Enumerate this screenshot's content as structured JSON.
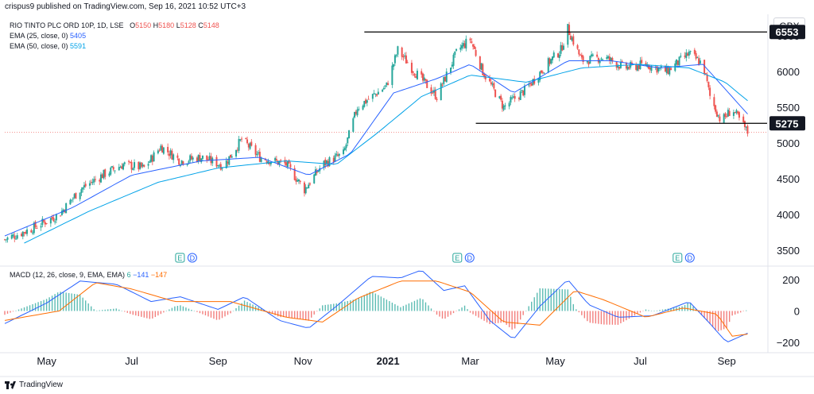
{
  "header": {
    "published_by": "crispus9 published on TradingView.com, Sep 16, 2021 10:52 UTC+3"
  },
  "legend": {
    "symbol": "RIO TINTO PLC ORD 10P, 1D, LSE",
    "open_label": "O",
    "open": "5150",
    "high_label": "H",
    "high": "5180",
    "low_label": "L",
    "low": "5128",
    "close_label": "C",
    "close": "5148",
    "ema25_label": "EMA (25, close, 0)",
    "ema25_value": "5405",
    "ema50_label": "EMA (50, close, 0)",
    "ema50_value": "5591"
  },
  "macd_legend": {
    "label": "MACD (12, 26, close, 9, EMA, EMA)",
    "hist": "6",
    "macd": "−141",
    "signal": "−147"
  },
  "currency": "GBX",
  "footer": {
    "brand": "TradingView"
  },
  "colors": {
    "up": "#26a69a",
    "down": "#ef5350",
    "ema25": "#2962ff",
    "ema50": "#00a2e8",
    "macd_line": "#2962ff",
    "signal_line": "#ff6d00",
    "hline": "#000000",
    "grid": "#f0f3fa"
  },
  "chart_data": {
    "type": "candlestick",
    "ylim": [
      3300,
      6800
    ],
    "y_ticks": [
      3500,
      4000,
      4500,
      5000,
      5500,
      6000,
      6500
    ],
    "x_ticks": [
      {
        "label": "May",
        "bold": false
      },
      {
        "label": "Jul",
        "bold": false
      },
      {
        "label": "Sep",
        "bold": false
      },
      {
        "label": "Nov",
        "bold": false
      },
      {
        "label": "2021",
        "bold": true
      },
      {
        "label": "Mar",
        "bold": false
      },
      {
        "label": "May",
        "bold": false
      },
      {
        "label": "Jul",
        "bold": false
      },
      {
        "label": "Sep",
        "bold": false
      }
    ],
    "horizontal_levels": [
      {
        "value": 6553,
        "label": "6553",
        "from": "2020-12-15",
        "to": "2021-09-30"
      },
      {
        "value": 5275,
        "label": "5275",
        "from": "2021-03-05",
        "to": "2021-09-30"
      }
    ],
    "close_path": [
      [
        "2020-04-01",
        3650
      ],
      [
        "2020-04-20",
        3800
      ],
      [
        "2020-05-10",
        4000
      ],
      [
        "2020-05-25",
        4350
      ],
      [
        "2020-06-10",
        4550
      ],
      [
        "2020-06-25",
        4700
      ],
      [
        "2020-07-10",
        4650
      ],
      [
        "2020-07-22",
        4950
      ],
      [
        "2020-08-05",
        4750
      ],
      [
        "2020-08-20",
        4800
      ],
      [
        "2020-09-05",
        4680
      ],
      [
        "2020-09-18",
        5050
      ],
      [
        "2020-10-01",
        4800
      ],
      [
        "2020-10-20",
        4700
      ],
      [
        "2020-11-02",
        4350
      ],
      [
        "2020-11-15",
        4700
      ],
      [
        "2020-11-30",
        4850
      ],
      [
        "2020-12-10",
        5500
      ],
      [
        "2020-12-31",
        5800
      ],
      [
        "2021-01-08",
        6300
      ],
      [
        "2021-01-20",
        6000
      ],
      [
        "2021-02-05",
        5650
      ],
      [
        "2021-02-20",
        6300
      ],
      [
        "2021-03-01",
        6450
      ],
      [
        "2021-03-10",
        6000
      ],
      [
        "2021-03-25",
        5500
      ],
      [
        "2021-04-10",
        5750
      ],
      [
        "2021-04-25",
        6100
      ],
      [
        "2021-05-05",
        6300
      ],
      [
        "2021-05-10",
        6600
      ],
      [
        "2021-05-20",
        6150
      ],
      [
        "2021-06-05",
        6200
      ],
      [
        "2021-06-20",
        6050
      ],
      [
        "2021-07-05",
        6100
      ],
      [
        "2021-07-20",
        6000
      ],
      [
        "2021-08-05",
        6250
      ],
      [
        "2021-08-15",
        6100
      ],
      [
        "2021-08-20",
        5650
      ],
      [
        "2021-08-28",
        5300
      ],
      [
        "2021-09-05",
        5480
      ],
      [
        "2021-09-16",
        5148
      ]
    ],
    "ema_25_path": [
      [
        "2020-04-01",
        3700
      ],
      [
        "2020-05-20",
        4100
      ],
      [
        "2020-07-01",
        4550
      ],
      [
        "2020-08-20",
        4750
      ],
      [
        "2020-10-01",
        4800
      ],
      [
        "2020-11-05",
        4550
      ],
      [
        "2020-12-05",
        4850
      ],
      [
        "2021-01-05",
        5700
      ],
      [
        "2021-02-05",
        5900
      ],
      [
        "2021-03-01",
        6100
      ],
      [
        "2021-04-01",
        5700
      ],
      [
        "2021-05-10",
        6150
      ],
      [
        "2021-06-10",
        6150
      ],
      [
        "2021-07-15",
        6050
      ],
      [
        "2021-08-15",
        6100
      ],
      [
        "2021-09-16",
        5405
      ]
    ],
    "ema_50_path": [
      [
        "2020-04-15",
        3600
      ],
      [
        "2020-06-01",
        4050
      ],
      [
        "2020-07-20",
        4450
      ],
      [
        "2020-09-01",
        4650
      ],
      [
        "2020-10-20",
        4750
      ],
      [
        "2020-11-25",
        4700
      ],
      [
        "2020-12-25",
        5150
      ],
      [
        "2021-01-25",
        5650
      ],
      [
        "2021-03-01",
        5950
      ],
      [
        "2021-04-10",
        5850
      ],
      [
        "2021-05-20",
        6050
      ],
      [
        "2021-06-30",
        6100
      ],
      [
        "2021-08-05",
        6050
      ],
      [
        "2021-08-31",
        5850
      ],
      [
        "2021-09-16",
        5591
      ]
    ],
    "event_markers": [
      {
        "date": "2020-08-05",
        "labels": [
          "E",
          "D"
        ]
      },
      {
        "date": "2021-02-20",
        "labels": [
          "E",
          "D"
        ]
      },
      {
        "date": "2021-07-28",
        "labels": [
          "E",
          "D"
        ]
      }
    ],
    "macd": {
      "ylim": [
        -260,
        280
      ],
      "y_ticks": [
        200,
        0,
        -200
      ],
      "macd_path": [
        [
          "2020-04-01",
          -80
        ],
        [
          "2020-05-01",
          50
        ],
        [
          "2020-05-25",
          190
        ],
        [
          "2020-06-20",
          170
        ],
        [
          "2020-07-15",
          60
        ],
        [
          "2020-08-05",
          90
        ],
        [
          "2020-09-01",
          10
        ],
        [
          "2020-09-20",
          90
        ],
        [
          "2020-10-15",
          -60
        ],
        [
          "2020-11-05",
          -110
        ],
        [
          "2020-11-25",
          30
        ],
        [
          "2020-12-20",
          220
        ],
        [
          "2021-01-10",
          210
        ],
        [
          "2021-01-25",
          260
        ],
        [
          "2021-02-10",
          130
        ],
        [
          "2021-02-25",
          160
        ],
        [
          "2021-03-15",
          -60
        ],
        [
          "2021-04-01",
          -180
        ],
        [
          "2021-04-20",
          30
        ],
        [
          "2021-05-10",
          200
        ],
        [
          "2021-05-25",
          40
        ],
        [
          "2021-06-15",
          -40
        ],
        [
          "2021-07-10",
          -30
        ],
        [
          "2021-08-05",
          60
        ],
        [
          "2021-08-20",
          -80
        ],
        [
          "2021-09-01",
          -200
        ],
        [
          "2021-09-16",
          -141
        ]
      ],
      "signal_path": [
        [
          "2020-04-01",
          -60
        ],
        [
          "2020-05-10",
          0
        ],
        [
          "2020-06-05",
          180
        ],
        [
          "2020-07-01",
          140
        ],
        [
          "2020-08-01",
          60
        ],
        [
          "2020-09-10",
          60
        ],
        [
          "2020-10-20",
          -40
        ],
        [
          "2020-11-15",
          -70
        ],
        [
          "2020-12-10",
          80
        ],
        [
          "2021-01-10",
          190
        ],
        [
          "2021-02-05",
          190
        ],
        [
          "2021-03-01",
          120
        ],
        [
          "2021-03-25",
          -70
        ],
        [
          "2021-04-20",
          -90
        ],
        [
          "2021-05-15",
          130
        ],
        [
          "2021-06-05",
          70
        ],
        [
          "2021-07-05",
          -40
        ],
        [
          "2021-08-01",
          20
        ],
        [
          "2021-08-25",
          -20
        ],
        [
          "2021-09-05",
          -160
        ],
        [
          "2021-09-16",
          -147
        ]
      ]
    }
  }
}
